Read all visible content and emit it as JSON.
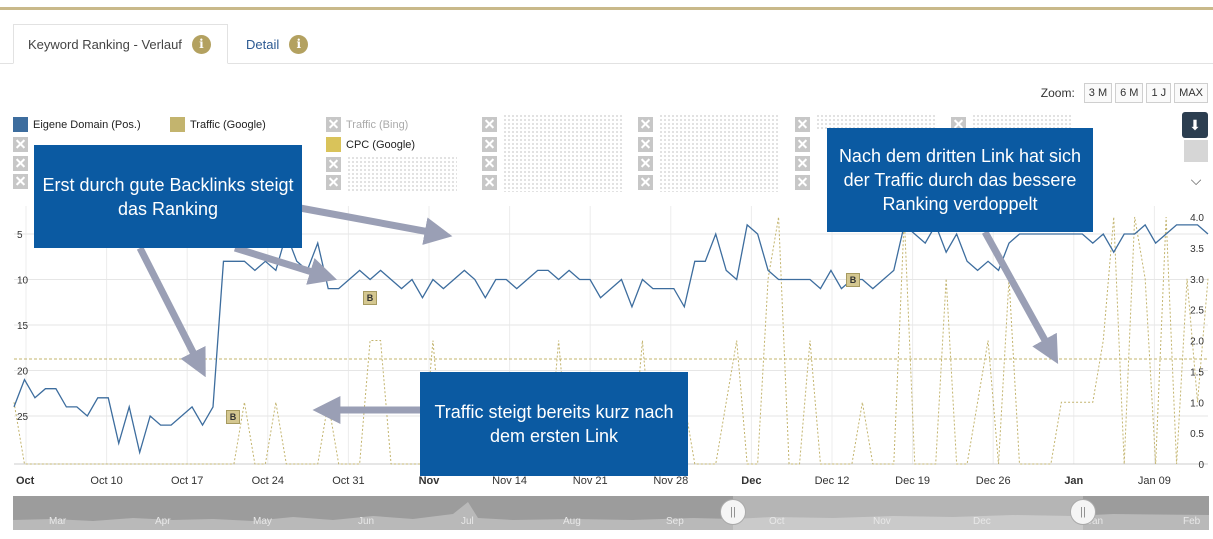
{
  "tabs": [
    {
      "label": "Keyword Ranking - Verlauf",
      "active": true
    },
    {
      "label": "Detail",
      "active": false
    }
  ],
  "zoom": {
    "label": "Zoom:",
    "options": [
      "3 M",
      "6 M",
      "1 J",
      "MAX"
    ]
  },
  "legend": {
    "items": [
      {
        "label": "Eigene Domain (Pos.)",
        "color": "#3d6d9e",
        "visible": true
      },
      {
        "label": "Traffic (Google)",
        "color": "#c3b46e",
        "visible": true
      },
      {
        "label": "Traffic (Bing)",
        "visible": false
      },
      {
        "label": "CPC (Google)",
        "color": "#d9c35a",
        "visible": true
      }
    ]
  },
  "callouts": {
    "backlinks": "Erst durch gute Backlinks steigt das Ranking",
    "traffic_first": "Traffic steigt bereits kurz nach dem ersten Link",
    "third_link": "Nach dem dritten Link hat sich der Traffic durch das bessere Ranking verdoppelt"
  },
  "markers": {
    "label": "B"
  },
  "colors": {
    "ranking": "#3d6d9e",
    "traffic": "#c3b46e",
    "callout": "#0b5aa2",
    "arrow": "#9a9fb5"
  },
  "chart_data": {
    "type": "line",
    "y_left": {
      "ticks": [
        "5",
        "10",
        "15",
        "20",
        "25"
      ],
      "values": [
        5,
        10,
        15,
        20,
        25
      ],
      "reversed": true
    },
    "y_right": {
      "ticks": [
        "4.0",
        "3.5",
        "3.0",
        "2.5",
        "2.0",
        "1.5",
        "1.0",
        "0.5",
        "0"
      ],
      "range": [
        0,
        4
      ]
    },
    "x_ticks": [
      {
        "label": "Oct",
        "bold": true
      },
      {
        "label": "Oct 10"
      },
      {
        "label": "Oct 17"
      },
      {
        "label": "Oct 24"
      },
      {
        "label": "Oct 31"
      },
      {
        "label": "Nov",
        "bold": true
      },
      {
        "label": "Nov 14"
      },
      {
        "label": "Nov 21"
      },
      {
        "label": "Nov 28"
      },
      {
        "label": "Dec",
        "bold": true
      },
      {
        "label": "Dec 12"
      },
      {
        "label": "Dec 19"
      },
      {
        "label": "Dec 26"
      },
      {
        "label": "Jan",
        "bold": true
      },
      {
        "label": "Jan 09"
      }
    ],
    "series": [
      {
        "name": "Eigene Domain (Pos.)",
        "axis": "left",
        "values": [
          24,
          21,
          23,
          22,
          22,
          24,
          24,
          25,
          23,
          23,
          28,
          24,
          29,
          25,
          26,
          26,
          25,
          24,
          26,
          24,
          8,
          8,
          8,
          9,
          8,
          9,
          5,
          8,
          9,
          6,
          11,
          11,
          10,
          9,
          10,
          9,
          10,
          11,
          10,
          12,
          10,
          11,
          10,
          9,
          10,
          12,
          10,
          10,
          11,
          10,
          9,
          9,
          10,
          9,
          10,
          10,
          12,
          11,
          10,
          13,
          10,
          11,
          11,
          11,
          13,
          8,
          8,
          5,
          9,
          10,
          4,
          5,
          9,
          10,
          10,
          10,
          10,
          11,
          9,
          11,
          10,
          10,
          11,
          10,
          9,
          4,
          5,
          6,
          4,
          7,
          5,
          8,
          9,
          8,
          9,
          6,
          5,
          5,
          5,
          5,
          5,
          5,
          5,
          6,
          5,
          7,
          5,
          5,
          4,
          6,
          5,
          4,
          4,
          4,
          5
        ]
      },
      {
        "name": "Traffic (Google)",
        "axis": "right",
        "values": [
          1,
          0,
          0,
          0,
          0,
          0,
          0,
          0,
          0,
          0,
          0,
          0,
          0,
          0,
          0,
          0,
          0,
          0,
          0,
          0,
          0,
          0,
          1,
          0,
          0,
          1,
          0,
          0,
          0,
          0,
          1,
          0,
          0,
          0,
          2,
          2,
          0,
          0,
          0,
          0,
          2,
          0,
          0,
          0,
          0,
          0,
          0,
          0,
          0,
          0,
          0,
          0,
          2,
          0,
          0,
          0,
          0,
          0,
          0,
          0,
          2,
          0,
          0,
          0,
          1,
          0,
          0,
          0,
          1,
          2,
          0,
          0,
          3,
          4,
          0,
          0,
          2,
          0,
          0,
          0,
          0,
          1,
          0,
          0,
          0,
          4,
          0,
          0,
          0,
          3,
          0,
          0,
          1,
          2,
          0,
          3,
          0,
          0,
          0,
          0,
          1,
          1,
          1,
          1,
          2,
          4,
          0,
          4,
          3,
          0,
          4,
          0,
          3,
          1,
          3
        ]
      },
      {
        "name": "CPC (Google)",
        "axis": "right",
        "values": [
          1.7,
          1.7,
          1.7,
          1.7,
          1.7,
          1.7,
          1.7,
          1.7,
          1.7,
          1.7,
          1.7,
          1.7,
          1.7,
          1.7,
          1.7,
          1.7,
          1.7,
          1.7,
          1.7,
          1.7,
          1.7,
          1.7,
          1.7,
          1.7,
          1.7,
          1.7,
          1.7,
          1.7,
          1.7,
          1.7,
          1.7,
          1.7,
          1.7,
          1.7,
          1.7,
          1.7,
          1.7,
          1.7,
          1.7,
          1.7,
          1.7,
          1.7,
          1.7,
          1.7,
          1.7,
          1.7,
          1.7,
          1.7,
          1.7,
          1.7,
          1.7,
          1.7,
          1.7,
          1.7,
          1.7,
          1.7,
          1.7,
          1.7,
          1.7,
          1.7,
          1.7,
          1.7,
          1.7,
          1.7,
          1.7,
          1.7,
          1.7,
          1.7,
          1.7,
          1.7,
          1.7,
          1.7,
          1.7,
          1.7,
          1.7,
          1.7,
          1.7,
          1.7,
          1.7,
          1.7,
          1.7,
          1.7,
          1.7,
          1.7,
          1.7,
          1.7,
          1.7,
          1.7,
          1.7,
          1.7,
          1.7,
          1.7,
          1.7,
          1.7,
          1.7,
          1.7,
          1.7,
          1.7,
          1.7,
          1.7,
          1.7,
          1.7,
          1.7,
          1.7,
          1.7,
          1.7,
          1.7,
          1.7,
          1.7,
          1.7,
          1.7,
          1.7,
          1.7,
          1.7,
          1.7
        ]
      }
    ],
    "grid": true
  },
  "navigator": {
    "labels": [
      "Mar",
      "Apr",
      "May",
      "Jun",
      "Jul",
      "Aug",
      "Sep",
      "Oct",
      "Nov",
      "Dec",
      "Jan",
      "Feb"
    ]
  }
}
